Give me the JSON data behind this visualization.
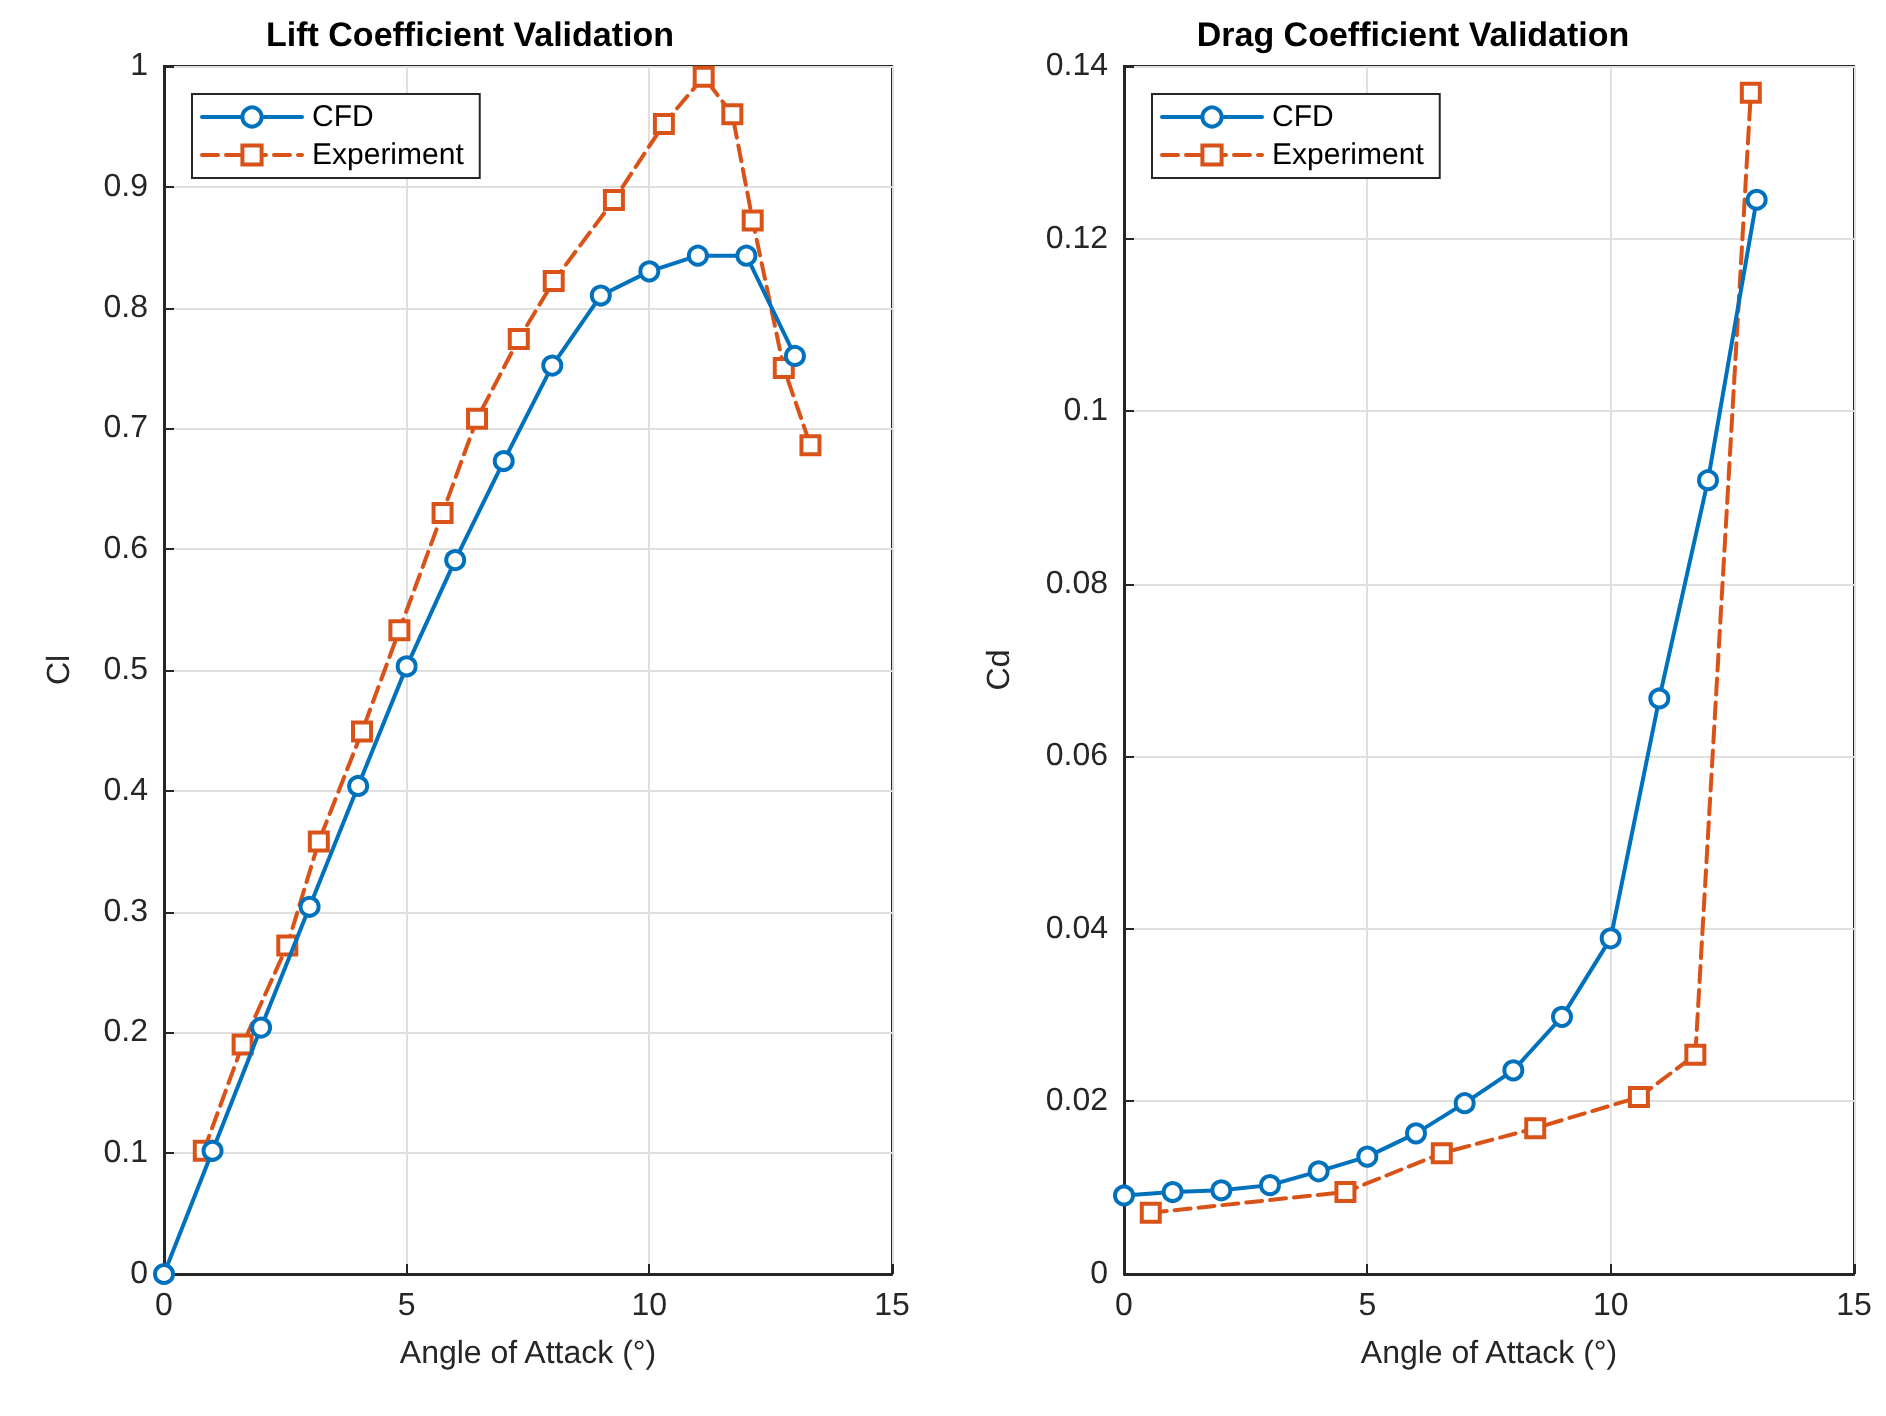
{
  "chart_data": [
    {
      "type": "line",
      "title": "Lift Coefficient Validation",
      "xlabel": "Angle of Attack (°)",
      "ylabel": "Cl",
      "xlim": [
        0,
        15
      ],
      "xticks": [
        0,
        5,
        10,
        15
      ],
      "ylim": [
        0,
        1
      ],
      "yticks": [
        0,
        0.1,
        0.2,
        0.3,
        0.4,
        0.5,
        0.6,
        0.7,
        0.8,
        0.9,
        1
      ],
      "grid": true,
      "legend": "top left",
      "series": [
        {
          "name": "CFD",
          "color": "#0072bd",
          "marker": "circle",
          "line_style": "solid",
          "x": [
            0,
            1,
            2,
            3,
            4,
            5,
            6,
            7,
            8,
            9,
            10,
            11,
            12,
            13
          ],
          "values": [
            0,
            0.102,
            0.204,
            0.304,
            0.404,
            0.503,
            0.591,
            0.673,
            0.752,
            0.81,
            0.83,
            0.843,
            0.843,
            0.76
          ]
        },
        {
          "name": "Experiment",
          "color": "#d95319",
          "marker": "square",
          "line_style": "dashed",
          "x": [
            0.82,
            1.62,
            2.54,
            3.19,
            4.08,
            4.85,
            5.74,
            6.45,
            7.31,
            8.03,
            9.27,
            10.3,
            11.12,
            11.71,
            12.13,
            12.77,
            13.32
          ],
          "values": [
            0.102,
            0.19,
            0.272,
            0.358,
            0.449,
            0.533,
            0.63,
            0.708,
            0.774,
            0.822,
            0.889,
            0.952,
            0.991,
            0.96,
            0.872,
            0.75,
            0.686
          ]
        }
      ]
    },
    {
      "type": "line",
      "title": "Drag Coefficient Validation",
      "xlabel": "Angle of Attack (°)",
      "ylabel": "Cd",
      "xlim": [
        0,
        15
      ],
      "xticks": [
        0,
        5,
        10,
        15
      ],
      "ylim": [
        0,
        0.14
      ],
      "yticks": [
        0,
        0.02,
        0.04,
        0.06,
        0.08,
        0.1,
        0.12,
        0.14
      ],
      "grid": true,
      "legend": "top left",
      "series": [
        {
          "name": "CFD",
          "color": "#0072bd",
          "marker": "circle",
          "line_style": "solid",
          "x": [
            0,
            1,
            2,
            3,
            4,
            5,
            6,
            7,
            8,
            9,
            10,
            11,
            12,
            13
          ],
          "values": [
            0.0091,
            0.0095,
            0.0097,
            0.0103,
            0.0119,
            0.0136,
            0.0163,
            0.0198,
            0.0236,
            0.0298,
            0.0389,
            0.0667,
            0.092,
            0.1245
          ]
        },
        {
          "name": "Experiment",
          "color": "#d95319",
          "marker": "square",
          "line_style": "dashed",
          "x": [
            0.55,
            4.55,
            6.53,
            8.45,
            10.58,
            11.74,
            12.88
          ],
          "values": [
            0.0071,
            0.0095,
            0.014,
            0.0169,
            0.0205,
            0.0254,
            0.1369
          ]
        }
      ]
    }
  ]
}
